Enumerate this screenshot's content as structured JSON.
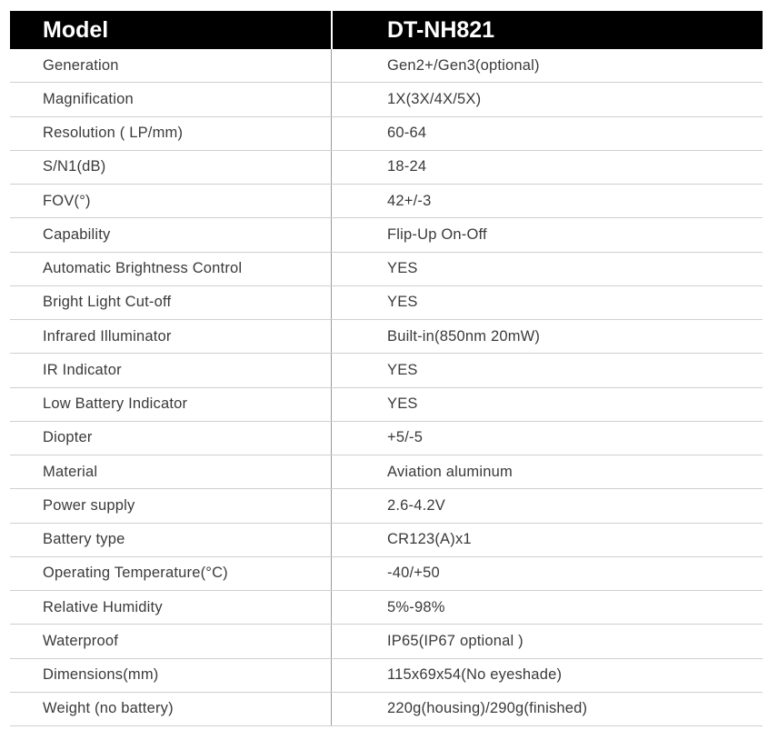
{
  "table": {
    "header": [
      "Model",
      "DT-NH821"
    ],
    "rows": [
      [
        "Generation",
        "Gen2+/Gen3(optional)"
      ],
      [
        "Magnification",
        "1X(3X/4X/5X)"
      ],
      [
        "Resolution ( LP/mm)",
        "60-64"
      ],
      [
        "S/N1(dB)",
        "18-24"
      ],
      [
        "FOV(°)",
        "42+/-3"
      ],
      [
        "Capability",
        "Flip-Up On-Off"
      ],
      [
        "Automatic Brightness Control",
        "YES"
      ],
      [
        "Bright Light Cut-off",
        "YES"
      ],
      [
        "Infrared Illuminator",
        "Built-in(850nm 20mW)"
      ],
      [
        "IR Indicator",
        "YES"
      ],
      [
        "Low Battery Indicator",
        "YES"
      ],
      [
        "Diopter",
        "+5/-5"
      ],
      [
        "Material",
        "Aviation aluminum"
      ],
      [
        "Power supply",
        "2.6-4.2V"
      ],
      [
        "Battery type",
        "CR123(A)x1"
      ],
      [
        "Operating Temperature(°C)",
        "-40/+50"
      ],
      [
        "Relative Humidity",
        "5%-98%"
      ],
      [
        "Waterproof",
        "IP65(IP67 optional )"
      ],
      [
        "Dimensions(mm)",
        "115x69x54(No eyeshade)"
      ],
      [
        "Weight (no battery)",
        "220g(housing)/290g(finished)"
      ]
    ]
  }
}
